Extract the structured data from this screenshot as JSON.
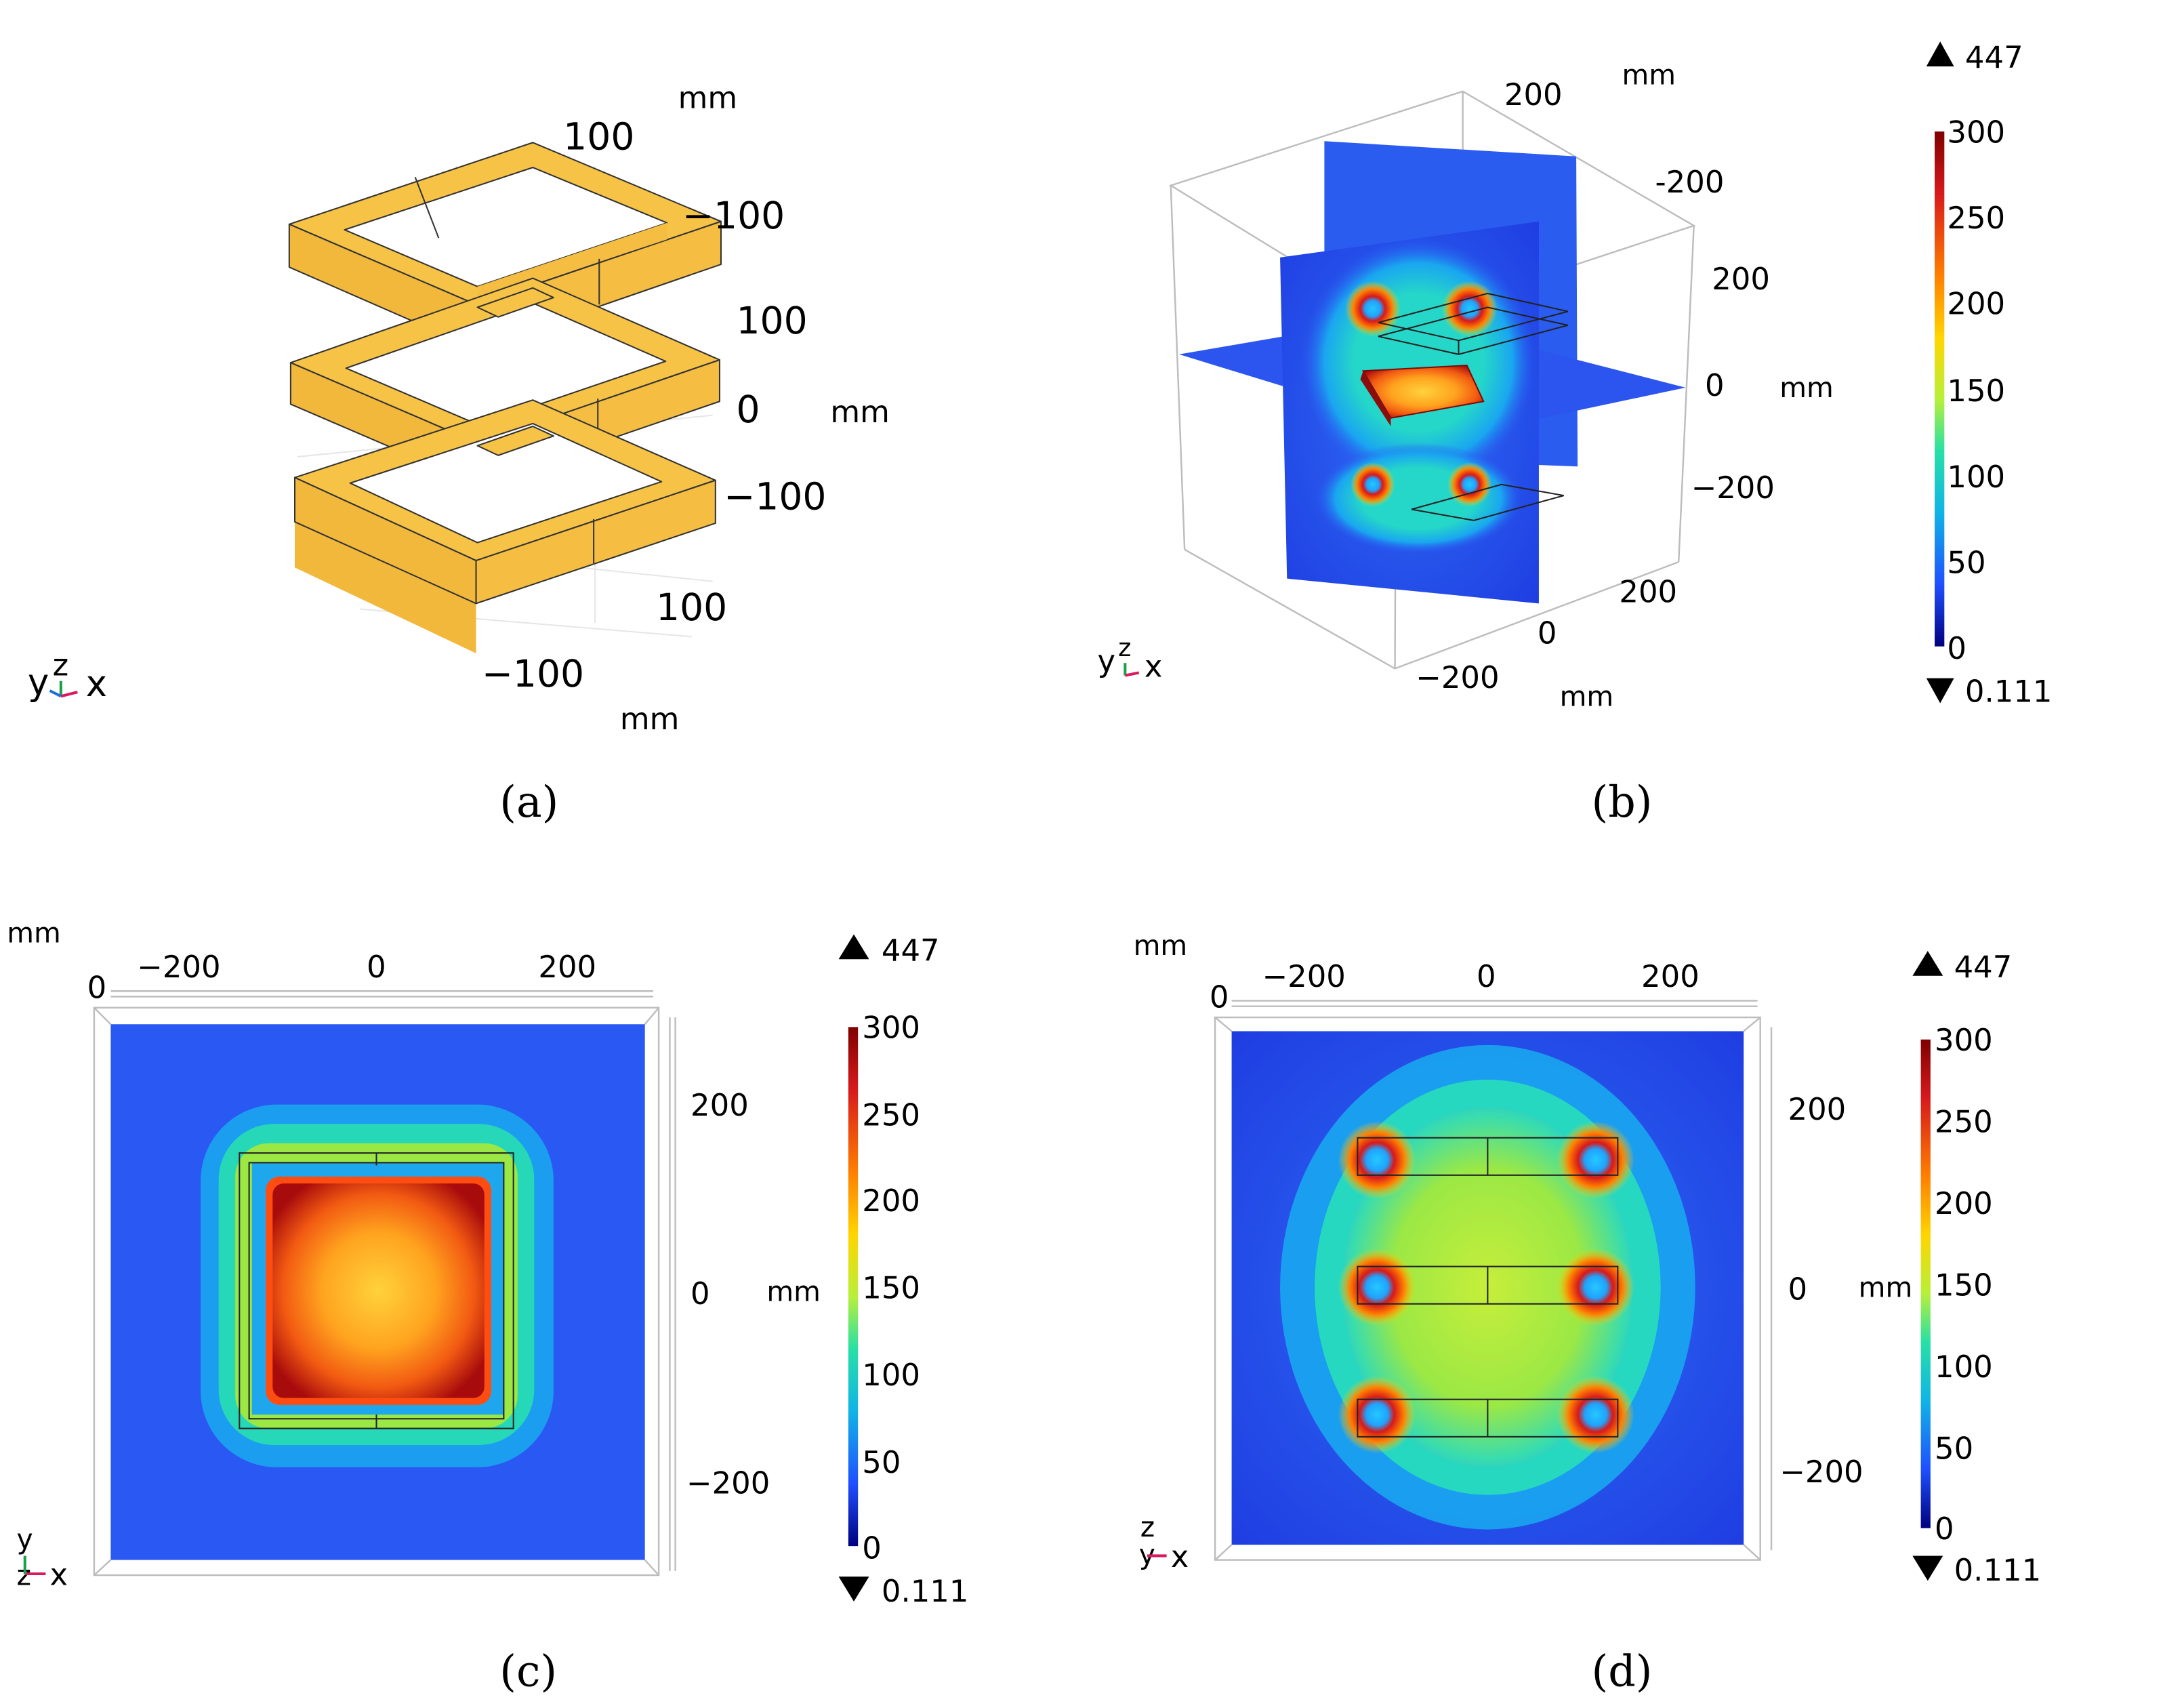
{
  "panels": {
    "a": {
      "caption": "(a)",
      "unit": "mm",
      "axis_triad": {
        "y": "y",
        "z": "z",
        "x": "x"
      },
      "ticks": {
        "top_100": "100",
        "top_m100": "−100",
        "z_100": "100",
        "z_0": "0",
        "z_m100": "−100",
        "bottom_100": "100",
        "bottom_m100": "−100"
      },
      "structure_color": "#f7c347"
    },
    "b": {
      "caption": "(b)",
      "unit": "mm",
      "axis_triad": {
        "y": "y",
        "z": "z",
        "x": "x"
      },
      "ticks": {
        "top_200": "200",
        "top_m200": "-200",
        "z_200": "200",
        "z_0": "0",
        "z_m200": "−200",
        "bottom_200": "200",
        "bottom_0": "0",
        "bottom_m200": "−200"
      }
    },
    "c": {
      "caption": "(c)",
      "unit": "mm",
      "axis_triad": {
        "y": "y",
        "z": "z",
        "x": "x"
      },
      "ticks": {
        "top_m200": "−200",
        "top_0": "0",
        "top_200": "200",
        "corner_0": "0",
        "side_200": "200",
        "side_0": "0",
        "side_m200": "−200"
      }
    },
    "d": {
      "caption": "(d)",
      "unit": "mm",
      "axis_triad": {
        "y": "y",
        "z": "z",
        "x": "x"
      },
      "ticks": {
        "top_m200": "−200",
        "top_0": "0",
        "top_200": "200",
        "corner_0": "0",
        "side_200": "200",
        "side_0": "0",
        "side_m200": "−200"
      }
    }
  },
  "colorbar": {
    "max_marker": "447",
    "min_marker": "0.111",
    "ticks": [
      "300",
      "250",
      "200",
      "150",
      "100",
      "50",
      "0"
    ],
    "colors": [
      "#7f0000",
      "#d7191c",
      "#ff7f00",
      "#ffd500",
      "#b7f03a",
      "#27e0a6",
      "#10b4e6",
      "#1f4fff",
      "#00007f"
    ]
  },
  "colors": {
    "background_field": "#2a58f2",
    "hot": "#a80b0b",
    "structure": "#f7c347"
  }
}
